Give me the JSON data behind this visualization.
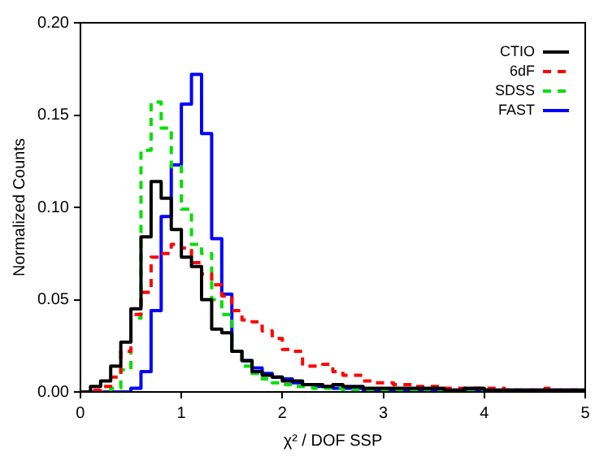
{
  "chart_data": {
    "type": "histogram",
    "xlabel": "χ² / DOF SSP",
    "ylabel": "Normalized Counts",
    "bins": [
      0,
      0.1,
      0.2,
      0.3,
      0.4,
      0.5,
      0.6,
      0.7,
      0.8,
      0.9,
      1,
      1.1,
      1.2,
      1.3,
      1.4,
      1.5,
      1.6,
      1.7,
      1.8,
      1.9,
      2,
      2.1,
      2.2,
      2.3,
      2.4,
      2.5,
      2.6,
      2.7,
      2.8,
      2.9,
      3,
      3.1,
      3.2,
      3.3,
      3.4,
      3.5,
      3.6,
      3.7,
      3.8,
      3.9,
      4,
      4.1,
      4.2,
      4.3,
      4.4,
      4.5,
      4.6,
      4.7,
      4.8,
      4.9,
      5
    ],
    "series": [
      {
        "name": "CTIO",
        "color": "#000000",
        "line_style": "solid",
        "values": [
          0,
          0.003,
          0.006,
          0.014,
          0.027,
          0.045,
          0.084,
          0.114,
          0.105,
          0.088,
          0.073,
          0.068,
          0.05,
          0.034,
          0.032,
          0.022,
          0.017,
          0.011,
          0.009,
          0.008,
          0.006,
          0.006,
          0.004,
          0.004,
          0.003,
          0.004,
          0.003,
          0.003,
          0.002,
          0.002,
          0.002,
          0.002,
          0.002,
          0.002,
          0.002,
          0.002,
          0.001,
          0.001,
          0.002,
          0.002,
          0.001,
          0.001,
          0.001,
          0.001,
          0.001,
          0.001,
          0.001,
          0.001,
          0.001,
          0.001
        ]
      },
      {
        "name": "6dF",
        "color": "#ff0000",
        "line_style": "dashed",
        "values": [
          0,
          0.001,
          0.003,
          0.008,
          0.022,
          0.042,
          0.054,
          0.073,
          0.075,
          0.08,
          0.078,
          0.07,
          0.064,
          0.058,
          0.052,
          0.044,
          0.039,
          0.038,
          0.033,
          0.029,
          0.023,
          0.022,
          0.014,
          0.014,
          0.015,
          0.011,
          0.009,
          0.009,
          0.006,
          0.005,
          0.005,
          0.004,
          0.004,
          0.003,
          0.003,
          0.003,
          0.002,
          0.002,
          0.002,
          0.002,
          0.002,
          0.002,
          0.001,
          0.001,
          0.001,
          0.001,
          0.002,
          0.001,
          0.001,
          0.001
        ]
      },
      {
        "name": "SDSS",
        "color": "#00e000",
        "line_style": "dashed",
        "values": [
          0,
          0,
          0,
          0.002,
          0.012,
          0.04,
          0.131,
          0.157,
          0.143,
          0.122,
          0.099,
          0.08,
          0.075,
          0.05,
          0.042,
          0.022,
          0.014,
          0.01,
          0.007,
          0.005,
          0.004,
          0.003,
          0.003,
          0.002,
          0.002,
          0.002,
          0.001,
          0.001,
          0.001,
          0.001,
          0.001,
          0.001,
          0.001,
          0.001,
          0,
          0,
          0,
          0,
          0,
          0,
          0,
          0,
          0,
          0,
          0,
          0,
          0,
          0,
          0,
          0
        ]
      },
      {
        "name": "FAST",
        "color": "#0000ff",
        "line_style": "solid",
        "values": [
          0,
          0,
          0,
          0,
          0,
          0.002,
          0.011,
          0.044,
          0.095,
          0.123,
          0.156,
          0.172,
          0.14,
          0.083,
          0.053,
          0.022,
          0.017,
          0.013,
          0.01,
          0.008,
          0.007,
          0.005,
          0.004,
          0.003,
          0.003,
          0.002,
          0.002,
          0.002,
          0.001,
          0.001,
          0.001,
          0.001,
          0.001,
          0.001,
          0.001,
          0.001,
          0.001,
          0.001,
          0.001,
          0.001,
          0.001,
          0.001,
          0.001,
          0.001,
          0.001,
          0.001,
          0.001,
          0.001,
          0.001,
          0.001
        ]
      }
    ],
    "xlim": [
      0,
      5
    ],
    "xticks": [
      0,
      1,
      2,
      3,
      4,
      5
    ],
    "ylim": [
      0,
      0.2
    ],
    "yticks": [
      {
        "value": 0,
        "label": "0.00"
      },
      {
        "value": 0.05,
        "label": "0.05"
      },
      {
        "value": 0.1,
        "label": "0.10"
      },
      {
        "value": 0.15,
        "label": "0.15"
      },
      {
        "value": 0.2,
        "label": "0.20"
      }
    ],
    "grid": false,
    "legend": "top right"
  }
}
